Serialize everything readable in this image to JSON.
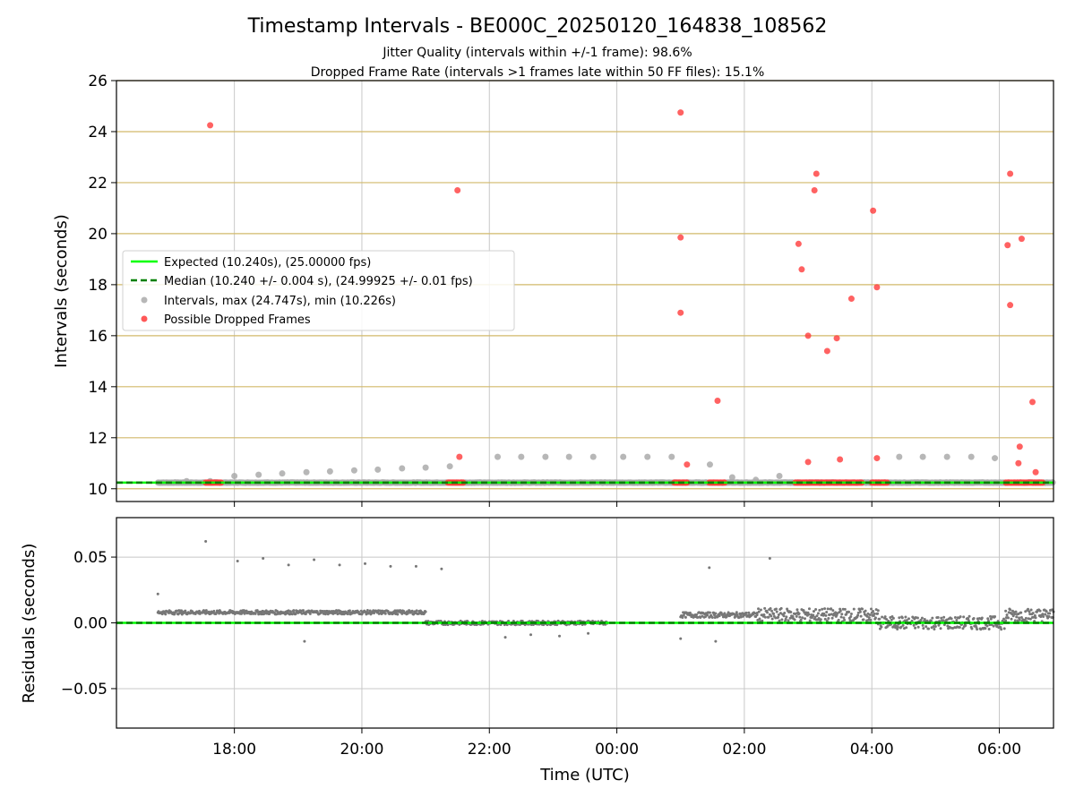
{
  "title": "Timestamp Intervals - BE000C_20250120_164838_108562",
  "subtitle1": "Jitter Quality (intervals within +/-1 frame): 98.6%",
  "subtitle2": "Dropped Frame Rate (intervals >1 frames late within 50 FF files): 15.1%",
  "colors": {
    "expected": "#00ff00",
    "median": "#008000",
    "interval": "#aaaaaa",
    "dropped": "#ff3b3b",
    "residual": "#777777",
    "grid": "#c8c8c8",
    "hline": "#d2b96a"
  },
  "chart_data": [
    {
      "type": "scatter",
      "name": "intervals",
      "xlabel": "",
      "ylabel": "Intervals (seconds)",
      "x_unit": "hours since 00:00 UTC (negative = previous day)",
      "xlim": [
        -7.85,
        6.85
      ],
      "ylim": [
        9.5,
        26
      ],
      "yticks": [
        10,
        12,
        14,
        16,
        18,
        20,
        22,
        24,
        26
      ],
      "ytick_labels": [
        "10",
        "12",
        "14",
        "16",
        "18",
        "20",
        "22",
        "24",
        "26"
      ],
      "grid": "x",
      "horizontal_lines": [
        10,
        12,
        14,
        16,
        18,
        20,
        22,
        24,
        26
      ],
      "legend": {
        "position": "center-left",
        "entries": [
          "Expected (10.240s), (25.00000 fps)",
          "Median (10.240 +/- 0.004 s), (24.99925 +/- 0.01 fps)",
          "Intervals, max (24.747s), min (10.226s)",
          "Possible Dropped Frames"
        ]
      },
      "expected": 10.24,
      "median": 10.24,
      "series": [
        {
          "name": "Intervals, max (24.747s), min (10.226s)",
          "x_start": -7.2,
          "x_end": 6.85,
          "baseline": 10.24,
          "points": [
            [
              -6.75,
              10.3
            ],
            [
              -6.38,
              10.3
            ],
            [
              -6.0,
              10.5
            ],
            [
              -5.62,
              10.55
            ],
            [
              -5.25,
              10.6
            ],
            [
              -4.87,
              10.65
            ],
            [
              -4.5,
              10.68
            ],
            [
              -4.12,
              10.72
            ],
            [
              -3.75,
              10.75
            ],
            [
              -3.37,
              10.8
            ],
            [
              -3.0,
              10.83
            ],
            [
              -2.62,
              10.88
            ],
            [
              -1.87,
              11.25
            ],
            [
              -1.5,
              11.25
            ],
            [
              -1.12,
              11.25
            ],
            [
              -0.75,
              11.25
            ],
            [
              -0.37,
              11.25
            ],
            [
              0.1,
              11.25
            ],
            [
              0.48,
              11.25
            ],
            [
              0.86,
              11.25
            ],
            [
              1.46,
              10.95
            ],
            [
              1.81,
              10.45
            ],
            [
              2.18,
              10.35
            ],
            [
              2.55,
              10.5
            ],
            [
              4.43,
              11.25
            ],
            [
              4.8,
              11.25
            ],
            [
              5.18,
              11.25
            ],
            [
              5.56,
              11.25
            ],
            [
              5.93,
              11.2
            ]
          ]
        },
        {
          "name": "Possible Dropped Frames",
          "points": [
            [
              -6.38,
              24.25
            ],
            [
              -2.5,
              21.7
            ],
            [
              -2.47,
              11.25
            ],
            [
              1.0,
              24.75
            ],
            [
              1.0,
              19.85
            ],
            [
              1.0,
              16.9
            ],
            [
              1.1,
              10.95
            ],
            [
              1.58,
              13.45
            ],
            [
              2.85,
              19.6
            ],
            [
              2.9,
              18.6
            ],
            [
              3.0,
              16.0
            ],
            [
              3.0,
              11.05
            ],
            [
              3.1,
              21.7
            ],
            [
              3.13,
              22.35
            ],
            [
              3.3,
              15.4
            ],
            [
              3.45,
              15.9
            ],
            [
              3.5,
              11.15
            ],
            [
              3.68,
              17.45
            ],
            [
              4.02,
              20.9
            ],
            [
              4.08,
              17.9
            ],
            [
              4.08,
              11.2
            ],
            [
              6.13,
              19.55
            ],
            [
              6.17,
              22.35
            ],
            [
              6.17,
              17.2
            ],
            [
              6.3,
              11.0
            ],
            [
              6.32,
              11.65
            ],
            [
              6.35,
              19.8
            ],
            [
              6.52,
              13.4
            ],
            [
              6.57,
              10.65
            ]
          ],
          "clusters": [
            [
              -6.45,
              -6.2
            ],
            [
              -2.65,
              -2.4
            ],
            [
              0.9,
              1.1
            ],
            [
              1.45,
              1.7
            ],
            [
              2.8,
              3.85
            ],
            [
              4.0,
              4.25
            ],
            [
              6.1,
              6.68
            ]
          ]
        }
      ]
    },
    {
      "type": "scatter",
      "name": "residuals",
      "xlabel": "Time (UTC)",
      "ylabel": "Residuals (seconds)",
      "xlim": [
        -7.85,
        6.85
      ],
      "ylim": [
        -0.08,
        0.08
      ],
      "yticks": [
        -0.05,
        0.0,
        0.05
      ],
      "ytick_labels": [
        "−0.05",
        "0.00",
        "0.05"
      ],
      "xticks": [
        -6,
        -4,
        -2,
        0,
        2,
        4,
        6
      ],
      "xtick_labels": [
        "18:00",
        "20:00",
        "22:00",
        "00:00",
        "02:00",
        "04:00",
        "06:00"
      ],
      "grid": "both",
      "zero_line": 0,
      "series": [
        {
          "name": "residuals",
          "segments": [
            {
              "x": [
                -7.2,
                -3.0
              ],
              "mean": 0.008,
              "spread": 0.0015
            },
            {
              "x": [
                -3.0,
                -0.15
              ],
              "mean": 0.0,
              "spread": 0.0015
            },
            {
              "x": [
                1.0,
                2.2
              ],
              "mean": 0.006,
              "spread": 0.002
            },
            {
              "x": [
                2.2,
                4.1
              ],
              "mean": 0.006,
              "spread": 0.005
            },
            {
              "x": [
                4.1,
                6.1
              ],
              "mean": 0.0,
              "spread": 0.005
            },
            {
              "x": [
                6.1,
                6.85
              ],
              "mean": 0.006,
              "spread": 0.005
            }
          ],
          "outliers": [
            [
              -7.2,
              0.022
            ],
            [
              -6.45,
              0.062
            ],
            [
              -5.95,
              0.047
            ],
            [
              -5.55,
              0.049
            ],
            [
              -5.15,
              0.044
            ],
            [
              -4.75,
              0.048
            ],
            [
              -4.35,
              0.044
            ],
            [
              -3.95,
              0.045
            ],
            [
              -3.55,
              0.043
            ],
            [
              -3.15,
              0.043
            ],
            [
              -2.75,
              0.041
            ],
            [
              1.45,
              0.042
            ],
            [
              2.4,
              0.049
            ],
            [
              -4.9,
              -0.014
            ],
            [
              -1.75,
              -0.011
            ],
            [
              -1.35,
              -0.009
            ],
            [
              -0.9,
              -0.01
            ],
            [
              -0.45,
              -0.008
            ],
            [
              1.0,
              -0.012
            ],
            [
              1.55,
              -0.014
            ]
          ]
        }
      ]
    }
  ]
}
